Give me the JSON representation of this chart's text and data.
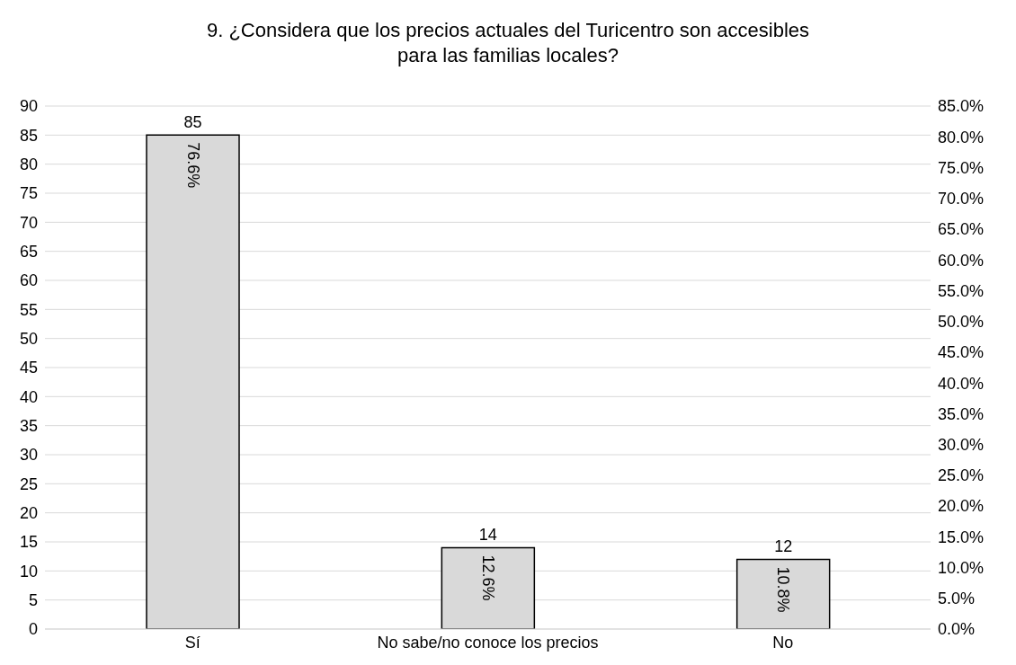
{
  "chart_data": {
    "type": "bar",
    "title": "9. ¿Considera que los precios actuales del Turicentro son accesibles para las familias locales?",
    "categories": [
      "Sí",
      "No sabe/no conoce los precios",
      "No"
    ],
    "series": [
      {
        "values": [
          85,
          14,
          12
        ],
        "color": "#d9d9d9"
      }
    ],
    "annotations": [
      "76.6%",
      "12.6%",
      "10.8%"
    ],
    "data_labels": true,
    "ylim": [
      0,
      90
    ],
    "yticks": [
      0,
      5,
      10,
      15,
      20,
      25,
      30,
      35,
      40,
      45,
      50,
      55,
      60,
      65,
      70,
      75,
      80,
      85,
      90
    ],
    "y2lim": [
      0,
      85
    ],
    "y2ticks": [
      {
        "value": 0,
        "label": "0.0%"
      },
      {
        "value": 5,
        "label": "5.0%"
      },
      {
        "value": 10,
        "label": "10.0%"
      },
      {
        "value": 15,
        "label": "15.0%"
      },
      {
        "value": 20,
        "label": "20.0%"
      },
      {
        "value": 25,
        "label": "25.0%"
      },
      {
        "value": 30,
        "label": "30.0%"
      },
      {
        "value": 35,
        "label": "35.0%"
      },
      {
        "value": 40,
        "label": "40.0%"
      },
      {
        "value": 45,
        "label": "45.0%"
      },
      {
        "value": 50,
        "label": "50.0%"
      },
      {
        "value": 55,
        "label": "55.0%"
      },
      {
        "value": 60,
        "label": "60.0%"
      },
      {
        "value": 65,
        "label": "65.0%"
      },
      {
        "value": 70,
        "label": "70.0%"
      },
      {
        "value": 75,
        "label": "75.0%"
      },
      {
        "value": 80,
        "label": "80.0%"
      },
      {
        "value": 85,
        "label": "85.0%"
      }
    ],
    "grid": "y"
  }
}
